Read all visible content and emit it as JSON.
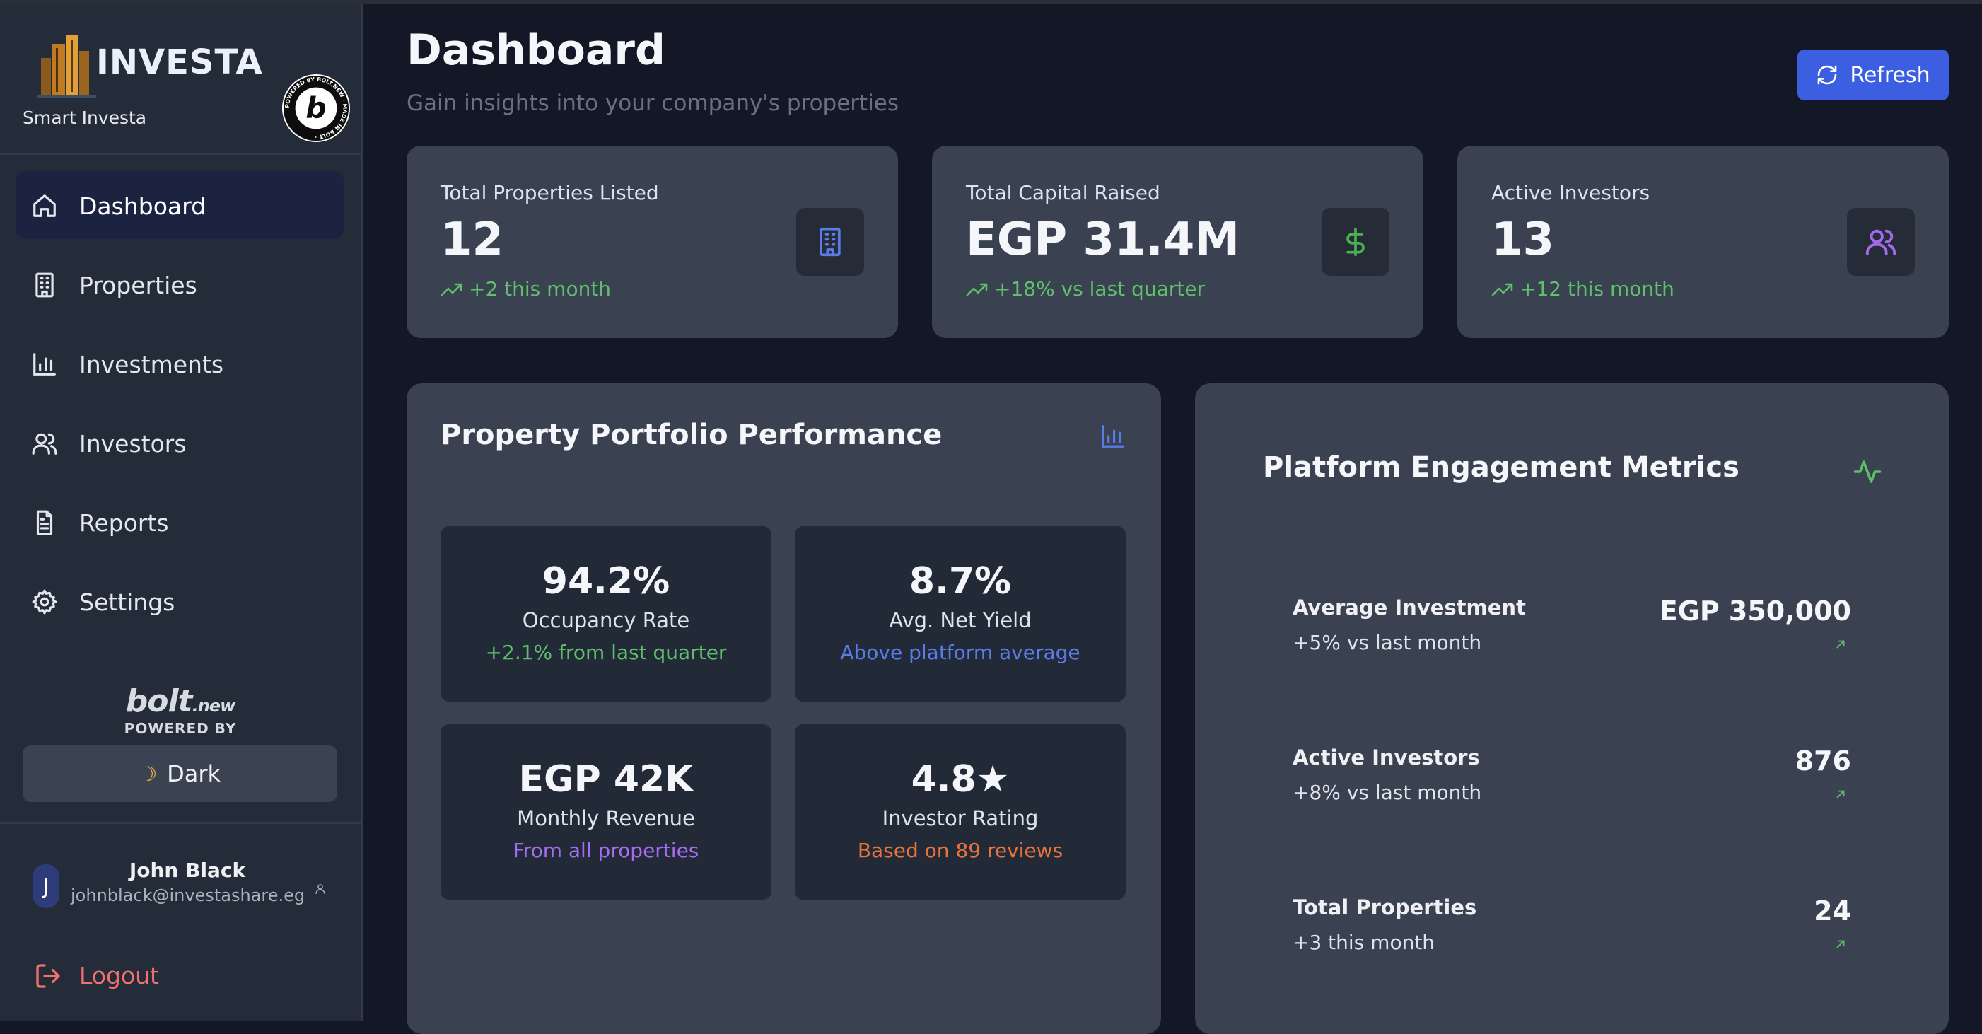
{
  "brand": {
    "name": "INVESTA",
    "tagline": "Smart Investa",
    "badge_text": "POWERED BY BOLT.NEW · MADE IN BOLT ·"
  },
  "sidebar": {
    "items": [
      {
        "label": "Dashboard",
        "icon": "home-icon",
        "active": true
      },
      {
        "label": "Properties",
        "icon": "building-icon",
        "active": false
      },
      {
        "label": "Investments",
        "icon": "bar-chart-icon",
        "active": false
      },
      {
        "label": "Investors",
        "icon": "users-icon",
        "active": false
      },
      {
        "label": "Reports",
        "icon": "file-text-icon",
        "active": false
      },
      {
        "label": "Settings",
        "icon": "gear-icon",
        "active": false
      }
    ],
    "bolt_word": "bolt",
    "bolt_suffix": ".new",
    "powered_by": "POWERED BY",
    "theme_button": "Dark"
  },
  "user": {
    "initial": "J",
    "name": "John Black",
    "email": "johnblack@investashare.eg"
  },
  "logout_label": "Logout",
  "header": {
    "title": "Dashboard",
    "subtitle": "Gain insights into your company's properties",
    "refresh_label": "Refresh"
  },
  "stats": [
    {
      "label": "Total Properties Listed",
      "value": "12",
      "trend": "+2 this month",
      "icon": "building-icon",
      "icon_color": "#5b7be6"
    },
    {
      "label": "Total Capital Raised",
      "value": "EGP 31.4M",
      "trend": "+18% vs last quarter",
      "icon": "dollar-icon",
      "icon_color": "#4caf50"
    },
    {
      "label": "Active Investors",
      "value": "13",
      "trend": "+12 this month",
      "icon": "users-icon",
      "icon_color": "#a06ae8"
    }
  ],
  "portfolio": {
    "title": "Property Portfolio Performance",
    "metrics": [
      {
        "value": "94.2%",
        "label": "Occupancy Rate",
        "sub": "+2.1% from last quarter",
        "color": "#5fbf6a"
      },
      {
        "value": "8.7%",
        "label": "Avg. Net Yield",
        "sub": "Above platform average",
        "color": "#5b7be6"
      },
      {
        "value": "EGP 42K",
        "label": "Monthly Revenue",
        "sub": "From all properties",
        "color": "#a56cf0"
      },
      {
        "value": "4.8★",
        "label": "Investor Rating",
        "sub": "Based on 89 reviews",
        "color": "#e8743b"
      }
    ]
  },
  "engagement": {
    "title": "Platform Engagement Metrics",
    "rows": [
      {
        "label": "Average Investment",
        "sub": "+5% vs last month",
        "value": "EGP 350,000"
      },
      {
        "label": "Active Investors",
        "sub": "+8% vs last month",
        "value": "876"
      },
      {
        "label": "Total Properties",
        "sub": "+3 this month",
        "value": "24"
      }
    ]
  }
}
